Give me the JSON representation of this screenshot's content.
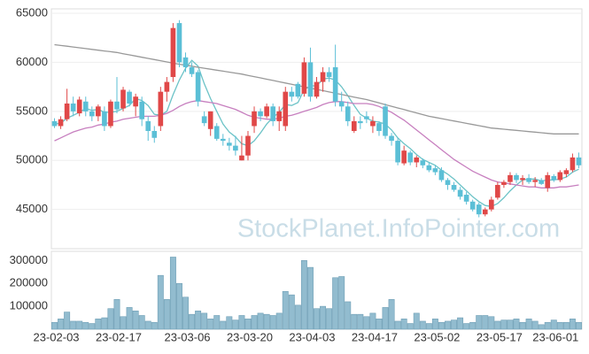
{
  "chart_data": [
    {
      "type": "candlestick",
      "watermark": "StockPlanet.InfoPointer.com",
      "ylim": [
        41000,
        65000
      ],
      "yticks": [
        45000,
        50000,
        55000,
        60000,
        65000
      ],
      "grid": true,
      "up_color": "#e04848",
      "down_color": "#5bbfd6",
      "open": [
        54000,
        53500,
        54200,
        55800,
        54800,
        56000,
        55000,
        54500,
        55000,
        53500,
        56000,
        55300,
        57000,
        55500,
        56000,
        54000,
        53000,
        53500,
        57000,
        58500,
        64000,
        60500,
        59500,
        59000,
        54500,
        53200,
        53500,
        52200,
        51800,
        51500,
        50000,
        50500,
        53500,
        55000,
        54500,
        55500,
        54000,
        53500,
        57000,
        57800,
        56800,
        60000,
        56500,
        58000,
        59000,
        59500,
        56000,
        55500,
        53000,
        54000,
        54500,
        53500,
        53800,
        55500,
        52500,
        52000,
        49700,
        50800,
        49800,
        50000,
        49500,
        49200,
        49000,
        48000,
        47500,
        47000,
        46500,
        45800,
        45500,
        44500,
        45000,
        46200,
        47500,
        47800,
        48500,
        48000,
        48200,
        47800,
        48000,
        47200,
        48400,
        48000,
        48600,
        49000,
        50300
      ],
      "high": [
        54300,
        54500,
        57300,
        56500,
        56500,
        56500,
        55500,
        55700,
        55500,
        56200,
        58500,
        57500,
        57200,
        56800,
        56500,
        54500,
        53500,
        57500,
        58500,
        64000,
        64300,
        61000,
        60000,
        59200,
        55000,
        55000,
        53800,
        52700,
        52300,
        52500,
        52500,
        53000,
        55500,
        55300,
        55800,
        55800,
        55500,
        57500,
        57500,
        58000,
        60500,
        61500,
        58500,
        59500,
        59500,
        61800,
        57000,
        56000,
        54500,
        54500,
        55000,
        54500,
        54000,
        55800,
        52800,
        52300,
        51500,
        51000,
        50500,
        50200,
        49800,
        49500,
        49300,
        48200,
        47800,
        47300,
        46800,
        46000,
        45700,
        45200,
        46300,
        47800,
        48000,
        48800,
        48700,
        48500,
        48600,
        48300,
        48200,
        48800,
        48600,
        49000,
        49200,
        50700,
        50800
      ],
      "low": [
        53300,
        53200,
        54000,
        54500,
        54500,
        54500,
        54000,
        54000,
        53000,
        53300,
        54800,
        55000,
        55500,
        54500,
        53500,
        52000,
        51800,
        53000,
        56000,
        58000,
        59500,
        59000,
        58500,
        55500,
        53500,
        52500,
        52000,
        51500,
        51000,
        50500,
        50000,
        50000,
        52800,
        54000,
        54300,
        53500,
        53000,
        53000,
        56000,
        56300,
        56500,
        56000,
        56300,
        57000,
        58000,
        55500,
        55000,
        53500,
        52800,
        53200,
        53800,
        52800,
        52500,
        52200,
        51500,
        49500,
        49500,
        49500,
        49300,
        49200,
        48800,
        48500,
        47800,
        47000,
        46800,
        46000,
        45500,
        44800,
        44200,
        44300,
        44800,
        46000,
        47200,
        47500,
        47700,
        47500,
        47600,
        47300,
        47500,
        46800,
        47800,
        47800,
        48300,
        48800,
        49200
      ],
      "close": [
        53500,
        54200,
        55800,
        55000,
        56200,
        55000,
        54500,
        55500,
        53500,
        56000,
        55200,
        57200,
        55800,
        56500,
        54200,
        53000,
        52300,
        57000,
        58000,
        63500,
        60000,
        59500,
        58800,
        56000,
        53800,
        55000,
        52200,
        52000,
        51500,
        51000,
        50500,
        52500,
        55000,
        54500,
        55500,
        54000,
        55000,
        57000,
        56500,
        56500,
        60000,
        56500,
        58000,
        59000,
        58500,
        56000,
        55500,
        54000,
        54000,
        53800,
        54200,
        54000,
        53000,
        52500,
        52000,
        49800,
        51000,
        49800,
        50300,
        49500,
        49000,
        48800,
        48000,
        47500,
        47000,
        46300,
        45800,
        45000,
        44500,
        45000,
        46000,
        47500,
        47800,
        48500,
        48000,
        48200,
        47800,
        48000,
        47600,
        48500,
        48000,
        48800,
        49000,
        50300,
        49500
      ],
      "series": [
        {
          "color": "#6cc3c7",
          "values": [
            53700,
            53800,
            54300,
            54600,
            54900,
            55300,
            55100,
            55200,
            54900,
            54900,
            55000,
            55300,
            55600,
            56300,
            56100,
            55600,
            54700,
            54600,
            55000,
            56700,
            58200,
            59400,
            60200,
            59600,
            57800,
            56300,
            55000,
            53700,
            52900,
            52400,
            51700,
            51500,
            52000,
            52800,
            53700,
            54400,
            54900,
            55700,
            55600,
            55900,
            57200,
            57600,
            57600,
            58300,
            58400,
            58200,
            57500,
            56600,
            55600,
            54700,
            54300,
            54000,
            53900,
            53700,
            53100,
            52300,
            51700,
            51200,
            50600,
            50100,
            49800,
            49500,
            49000,
            48600,
            48100,
            47500,
            46900,
            46300,
            45800,
            45400,
            45300,
            45600,
            46200,
            46900,
            47500,
            48000,
            48100,
            48100,
            47900,
            48000,
            48000,
            48100,
            48300,
            48800,
            49100
          ]
        },
        {
          "color": "#c77fbf",
          "values": [
            52000,
            52300,
            52600,
            52900,
            53100,
            53300,
            53400,
            53600,
            53700,
            53900,
            54000,
            54200,
            54300,
            54400,
            54500,
            54500,
            54500,
            54600,
            54800,
            55100,
            55500,
            55800,
            56000,
            56100,
            56000,
            55900,
            55800,
            55600,
            55400,
            55200,
            54900,
            54600,
            54400,
            54300,
            54200,
            54200,
            54300,
            54500,
            54600,
            54800,
            55000,
            55200,
            55400,
            55700,
            55900,
            56000,
            56000,
            55900,
            55800,
            55800,
            55800,
            55700,
            55500,
            55200,
            54900,
            54500,
            54100,
            53600,
            53100,
            52600,
            52100,
            51600,
            51100,
            50600,
            50100,
            49700,
            49300,
            48900,
            48600,
            48300,
            48000,
            47800,
            47700,
            47600,
            47500,
            47400,
            47300,
            47300,
            47200,
            47200,
            47200,
            47300,
            47300,
            47400,
            47500
          ]
        },
        {
          "color": "#999999",
          "values": [
            61800,
            61720,
            61640,
            61560,
            61480,
            61400,
            61320,
            61240,
            61160,
            61080,
            61000,
            60880,
            60760,
            60640,
            60520,
            60400,
            60280,
            60160,
            60040,
            59920,
            59800,
            59700,
            59600,
            59500,
            59400,
            59300,
            59200,
            59100,
            59000,
            58900,
            58800,
            58670,
            58540,
            58410,
            58280,
            58150,
            58020,
            57890,
            57760,
            57630,
            57500,
            57370,
            57240,
            57110,
            56980,
            56850,
            56720,
            56590,
            56460,
            56330,
            56200,
            56030,
            55860,
            55690,
            55520,
            55350,
            55180,
            55010,
            54840,
            54670,
            54500,
            54380,
            54260,
            54140,
            54020,
            53900,
            53780,
            53660,
            53540,
            53420,
            53300,
            53240,
            53180,
            53120,
            53060,
            53000,
            52940,
            52880,
            52820,
            52760,
            52700,
            52700,
            52700,
            52700,
            52700
          ]
        }
      ]
    },
    {
      "type": "bar",
      "color": "#92bccf",
      "ylim": [
        0,
        340000
      ],
      "yticks": [
        100000,
        200000,
        300000
      ],
      "categories": [
        "23-02-03",
        null,
        null,
        null,
        null,
        null,
        null,
        null,
        null,
        null,
        "23-02-17",
        null,
        null,
        null,
        null,
        null,
        null,
        null,
        null,
        null,
        null,
        "23-03-06",
        null,
        null,
        null,
        null,
        null,
        null,
        null,
        null,
        null,
        "23-03-20",
        null,
        null,
        null,
        null,
        null,
        null,
        null,
        null,
        null,
        "23-04-03",
        null,
        null,
        null,
        null,
        null,
        null,
        null,
        null,
        null,
        "23-04-17",
        null,
        null,
        null,
        null,
        null,
        null,
        null,
        null,
        null,
        "23-05-02",
        null,
        null,
        null,
        null,
        null,
        null,
        null,
        null,
        null,
        "23-05-17",
        null,
        null,
        null,
        null,
        null,
        null,
        null,
        null,
        "23-06-01",
        null,
        null,
        null,
        null
      ],
      "values": [
        30000,
        45000,
        75000,
        35000,
        35000,
        30000,
        25000,
        45000,
        50000,
        90000,
        130000,
        55000,
        95000,
        80000,
        60000,
        35000,
        30000,
        235000,
        130000,
        315000,
        200000,
        140000,
        65000,
        80000,
        70000,
        45000,
        60000,
        35000,
        55000,
        40000,
        60000,
        45000,
        60000,
        70000,
        65000,
        60000,
        70000,
        165000,
        150000,
        105000,
        300000,
        270000,
        90000,
        100000,
        90000,
        225000,
        230000,
        120000,
        65000,
        65000,
        55000,
        70000,
        45000,
        95000,
        130000,
        35000,
        45000,
        25000,
        70000,
        35000,
        25000,
        45000,
        30000,
        35000,
        40000,
        50000,
        25000,
        30000,
        60000,
        60000,
        55000,
        35000,
        40000,
        40000,
        45000,
        30000,
        45000,
        35000,
        20000,
        30000,
        40000,
        30000,
        30000,
        45000,
        30000
      ]
    }
  ]
}
